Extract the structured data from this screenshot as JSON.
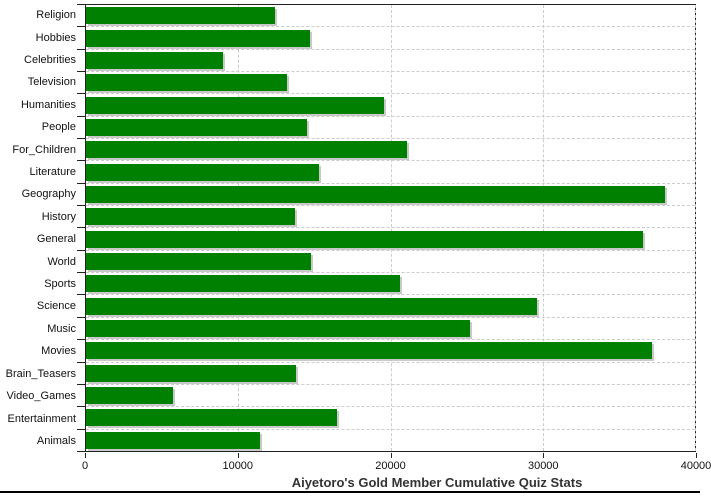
{
  "chart_data": {
    "type": "bar",
    "orientation": "horizontal",
    "title": "Aiyetoro's Gold Member Cumulative Quiz Stats",
    "categories": [
      "Religion",
      "Hobbies",
      "Celebrities",
      "Television",
      "Humanities",
      "People",
      "For_Children",
      "Literature",
      "Geography",
      "History",
      "General",
      "World",
      "Sports",
      "Science",
      "Music",
      "Movies",
      "Brain_Teasers",
      "Video_Games",
      "Entertainment",
      "Animals"
    ],
    "values": [
      12400,
      14700,
      9000,
      13200,
      19600,
      14500,
      21100,
      15300,
      38000,
      13700,
      36600,
      14800,
      20600,
      29600,
      25200,
      37200,
      13800,
      5700,
      16500,
      11400
    ],
    "xlabel": "",
    "ylabel": "",
    "xlim": [
      0,
      40000
    ],
    "x_ticks": [
      0,
      10000,
      20000,
      30000,
      40000
    ],
    "x_tick_labels": [
      "0",
      "10000",
      "20000",
      "30000",
      "40000"
    ],
    "bar_color": "#008000",
    "bar_shadow_color": "#c9c9c9",
    "grid_color": "#cccccc",
    "grid_style": "dashed",
    "legend_position": "none",
    "plot_background": "#ffffff"
  }
}
